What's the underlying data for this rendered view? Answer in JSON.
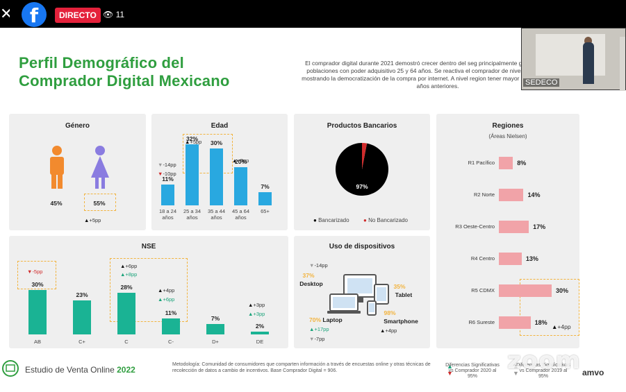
{
  "app": {
    "close_glyph": "✕",
    "brand_glyph": "f",
    "live_label": "DIRECTO",
    "viewer_count": "11",
    "camera_label": "SEDECO",
    "watermark": "zoom",
    "colors": {
      "brand": "#1877f2",
      "live": "#e4213b",
      "accent_green": "#2f9e3f",
      "bar_teal": "#1ab394",
      "bar_blue": "#29a8e0",
      "bar_pink": "#f1a3a8",
      "box_dash": "#f2b33d"
    }
  },
  "slide": {
    "title_line1": "Perfil Demográfico del",
    "title_line2": "Comprador Digital Mexicano",
    "intro": "El comprador digital durante 2021 demostró crecer dentro del seg principalmente ganando terreno en poblaciones con poder adquisitivo 25 y 64 años. Se reactiva el comprador de niveles socioeconómic mostrando la democratización de la compra por internet. A nivel region tener mayor participación que en años anteriores.",
    "genero": {
      "title": "Género",
      "male_pct": "45%",
      "female_pct": "55%",
      "female_delta": "+5pp"
    },
    "edad": {
      "title": "Edad",
      "deltas": {
        "d1a": "-14pp",
        "d1b": "-10pp",
        "d2": "+5pp",
        "d4": "+5pp"
      }
    },
    "bancos": {
      "title": "Productos Bancarios",
      "pct": "97%",
      "legend_a": "Bancarizado",
      "legend_b": "No Bancarizado"
    },
    "regiones": {
      "title": "Regiones",
      "subtitle": "(Áreas Nielsen)",
      "delta": "+4pp"
    },
    "nse": {
      "title": "NSE",
      "deltas": {
        "ab": "-5pp",
        "c1": "+6pp",
        "c2": "+8pp",
        "cm1": "+4pp",
        "cm2": "+6pp",
        "de1": "+3pp",
        "de2": "+3pp"
      }
    },
    "dispositivos": {
      "title": "Uso de dispositivos",
      "desktop_delta": "-14pp",
      "desktop_pct": "37%",
      "desktop_label": "Desktop",
      "tablet_pct": "35%",
      "tablet_label": "Tablet",
      "smart_pct": "98%",
      "smart_label": "Smartphone",
      "smart_delta": "+4pp",
      "laptop_pct": "70%",
      "laptop_label": "Laptop",
      "laptop_delta1": "+17pp",
      "laptop_delta2": "-7pp"
    },
    "footer": {
      "study": "Estudio de Venta Online",
      "year": "2022",
      "methodology": "Metodología: Comunidad de consumidores que comparten información a través de encuestas online y otras técnicas de recolección de datos a cambio de incentivos. Base Comprador Digital = 906.",
      "legend1": "Diferencias Significativas vs Comprador 2020 al 95%",
      "legend2": "Diferencias Significativas vs Comprador 2019 al 95%",
      "logo": "amvo"
    }
  },
  "chart_data": [
    {
      "type": "bar",
      "title": "Edad",
      "categories": [
        "18 a 24 años",
        "25 a 34 años",
        "35 a 44 años",
        "45 a 64 años",
        "65+"
      ],
      "values": [
        11,
        32,
        30,
        20,
        7
      ],
      "ylim": [
        0,
        32
      ]
    },
    {
      "type": "pie",
      "title": "Productos Bancarios",
      "categories": [
        "Bancarizado",
        "No Bancarizado"
      ],
      "values": [
        97,
        3
      ],
      "data_labels": [
        "97%",
        ""
      ]
    },
    {
      "type": "bar",
      "title": "NSE",
      "categories": [
        "AB",
        "C+",
        "C",
        "C-",
        "D+",
        "DE"
      ],
      "values": [
        30,
        23,
        28,
        11,
        7,
        2
      ],
      "ylim": [
        0,
        30
      ]
    },
    {
      "type": "bar",
      "title": "Regiones",
      "subtitle": "(Áreas Nielsen)",
      "categories": [
        "R1 Pacífico",
        "R2 Norte",
        "R3 Oeste-Centro",
        "R4 Centro",
        "R5 CDMX",
        "R6 Sureste"
      ],
      "values": [
        8,
        14,
        17,
        13,
        30,
        18
      ],
      "ylim": [
        0,
        30
      ]
    }
  ]
}
